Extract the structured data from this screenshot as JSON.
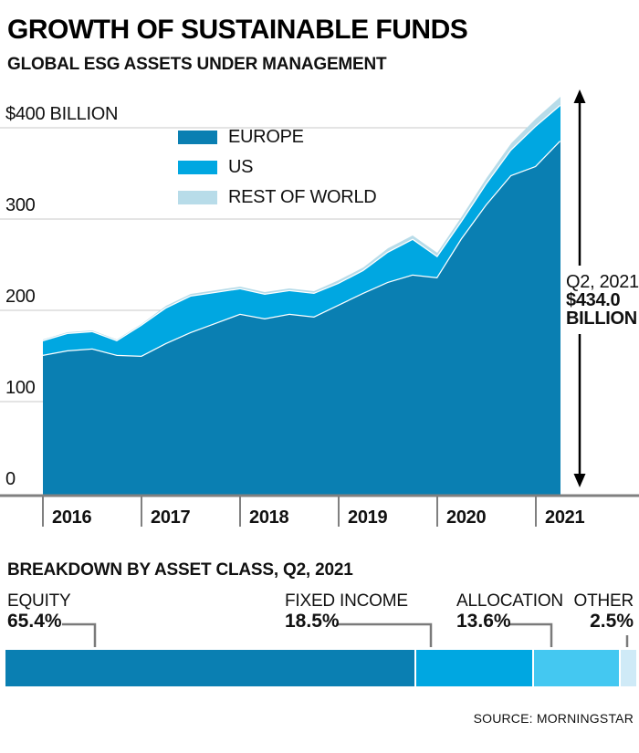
{
  "header": {
    "title": "GROWTH OF SUSTAINABLE FUNDS",
    "subtitle": "GLOBAL ESG ASSETS UNDER MANAGEMENT"
  },
  "chart_data": {
    "type": "area",
    "stacked": true,
    "unit": "USD billions",
    "x": [
      "2016 Q1",
      "2016 Q2",
      "2016 Q3",
      "2016 Q4",
      "2017 Q1",
      "2017 Q2",
      "2017 Q3",
      "2017 Q4",
      "2018 Q1",
      "2018 Q2",
      "2018 Q3",
      "2018 Q4",
      "2019 Q1",
      "2019 Q2",
      "2019 Q3",
      "2019 Q4",
      "2020 Q1",
      "2020 Q2",
      "2020 Q3",
      "2020 Q4",
      "2021 Q1",
      "2021 Q2"
    ],
    "x_tick_labels": [
      "2016",
      "2017",
      "2018",
      "2019",
      "2020",
      "2021"
    ],
    "series": [
      {
        "name": "EUROPE",
        "color": "#0a7fb2",
        "values": [
          150,
          155,
          157,
          150,
          149,
          163,
          175,
          185,
          195,
          190,
          195,
          192,
          205,
          218,
          230,
          238,
          235,
          278,
          315,
          347,
          357,
          385
        ]
      },
      {
        "name": "US",
        "color": "#00a7e1",
        "values": [
          16,
          19,
          19,
          16,
          34,
          39,
          40,
          34,
          28,
          27,
          26,
          26,
          24,
          25,
          33,
          39,
          23,
          19,
          23,
          28,
          44,
          39
        ]
      },
      {
        "name": "REST OF WORLD",
        "color": "#b8dce9",
        "values": [
          2,
          2,
          2,
          2,
          2,
          3,
          3,
          3,
          3,
          3,
          3,
          3,
          4,
          4,
          5,
          5,
          5,
          6,
          7,
          8,
          9,
          10
        ]
      }
    ],
    "totals": [
      168,
      176,
      178,
      168,
      185,
      205,
      218,
      222,
      226,
      220,
      224,
      221,
      233,
      247,
      268,
      282,
      263,
      303,
      345,
      383,
      410,
      434
    ],
    "y_axis": {
      "ticks": [
        {
          "value": 400,
          "label": "$400 BILLION"
        },
        {
          "value": 300,
          "label": "300"
        },
        {
          "value": 200,
          "label": "200"
        },
        {
          "value": 100,
          "label": "100"
        },
        {
          "value": 0,
          "label": "0"
        }
      ],
      "range": [
        0,
        440
      ]
    },
    "grid": "horizontal",
    "legend_position": "inside-top-left",
    "annotation": {
      "label": "Q2, 2021",
      "value": "$434.0",
      "unit": "BILLION"
    }
  },
  "breakdown": {
    "heading": "BREAKDOWN BY ASSET CLASS, Q2, 2021",
    "type": "stacked-bar",
    "segments": [
      {
        "label": "EQUITY",
        "pct": 65.4,
        "pct_label": "65.4%",
        "color": "#0a7fb2"
      },
      {
        "label": "FIXED INCOME",
        "pct": 18.5,
        "pct_label": "18.5%",
        "color": "#00a7e1"
      },
      {
        "label": "ALLOCATION",
        "pct": 13.6,
        "pct_label": "13.6%",
        "color": "#44c8f1"
      },
      {
        "label": "OTHER",
        "pct": 2.5,
        "pct_label": "2.5%",
        "color": "#cfeaf7"
      }
    ]
  },
  "source": "SOURCE: MORNINGSTAR",
  "colors": {
    "gridline": "#c9c9c9",
    "axis": "#808080",
    "leader_line": "#7a7a7a",
    "arrow": "#000000",
    "text": "#111111"
  }
}
